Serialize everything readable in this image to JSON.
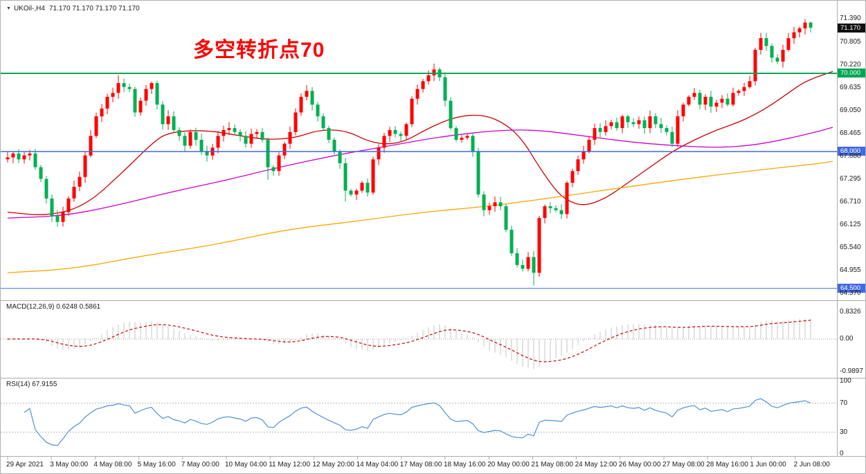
{
  "colors": {
    "bull": "#FF0000",
    "bear": "#00B050",
    "ma_fast": "#CC0000",
    "ma_mid": "#CC00CC",
    "ma_slow": "#FFA500",
    "hline_green": "#00A651",
    "hline_blue": "#4169E1",
    "annotation": "#FF0000",
    "current_bg": "#111111",
    "macd_hist": "#C6C6C6",
    "macd_signal": "#CC0000",
    "rsi_line": "#4A90D9",
    "level_dash": "#B8B8B8",
    "grid_zero": "#999999",
    "frame": "#ABABAB",
    "text": "#1A1A1A"
  },
  "header": {
    "marker": "▼",
    "symbol_period": "UKOil-,H4",
    "ohlc": "71.170 71.170 71.170 71.170"
  },
  "annotation": {
    "text": "多空转折点70"
  },
  "indicators": {
    "macd_label": "MACD(12,26,9) 0.6248 0.5861",
    "rsi_label": "RSI(14) 67.9155"
  },
  "price_labels": {
    "current": "71.170",
    "h70": "70.000",
    "h68": "68.000",
    "h645": "64.500"
  },
  "chart_data": {
    "type": "candlestick",
    "title": "UKOil- H4 candlestick chart with 3 moving averages, MACD(12,26,9) and RSI(14)",
    "symbol": "UKOil-",
    "timeframe": "H4",
    "x_axis_labels": [
      "29 Apr 2021",
      "3 May 00:00",
      "4 May 08:00",
      "5 May 16:00",
      "7 May 00:00",
      "10 May 04:00",
      "11 May 12:00",
      "12 May 20:00",
      "14 May 04:00",
      "17 May 08:00",
      "18 May 16:00",
      "20 May 00:00",
      "21 May 08:00",
      "24 May 12:00",
      "26 May 00:00",
      "27 May 08:00",
      "28 May 16:00",
      "1 Jun 00:00",
      "2 Jun 08:00"
    ],
    "y_axis_ticks": [
      71.39,
      70.805,
      70.22,
      69.635,
      69.05,
      68.465,
      67.88,
      67.295,
      66.71,
      66.125,
      65.54,
      64.955,
      64.37
    ],
    "hlines": [
      {
        "price": 70.0,
        "label": "70.000",
        "color_key": "hline_green",
        "width": 2
      },
      {
        "price": 68.0,
        "label": "68.000",
        "color_key": "hline_blue",
        "width": 1.5
      },
      {
        "price": 64.5,
        "label": "64.500",
        "color_key": "hline_blue",
        "width": 1
      }
    ],
    "current_price": 71.17,
    "candles": {
      "first_open": 67.8,
      "close": [
        67.85,
        67.95,
        67.8,
        67.9,
        67.95,
        67.6,
        67.3,
        66.8,
        66.35,
        66.2,
        66.45,
        66.8,
        67.1,
        67.35,
        67.9,
        68.4,
        68.9,
        69.1,
        69.4,
        69.5,
        69.75,
        69.65,
        69.6,
        69.0,
        69.3,
        69.6,
        69.75,
        69.2,
        68.7,
        68.9,
        68.55,
        68.4,
        68.15,
        68.5,
        68.3,
        68.0,
        67.9,
        68.1,
        68.4,
        68.55,
        68.6,
        68.5,
        68.4,
        68.2,
        68.45,
        68.5,
        68.3,
        67.6,
        67.5,
        67.9,
        68.2,
        68.5,
        69.0,
        69.4,
        69.55,
        69.2,
        68.9,
        68.6,
        68.3,
        68.0,
        67.7,
        67.0,
        66.9,
        67.0,
        67.2,
        66.95,
        67.8,
        68.1,
        68.4,
        68.55,
        68.45,
        68.4,
        68.7,
        69.35,
        69.6,
        69.8,
        69.95,
        70.1,
        69.9,
        69.3,
        68.6,
        68.3,
        68.35,
        68.4,
        68.0,
        66.9,
        66.5,
        66.6,
        66.7,
        66.6,
        66.0,
        65.4,
        65.1,
        65.0,
        65.3,
        64.9,
        66.3,
        66.6,
        66.55,
        66.5,
        66.4,
        67.2,
        67.5,
        67.8,
        68.0,
        68.3,
        68.6,
        68.5,
        68.65,
        68.75,
        68.6,
        68.9,
        68.75,
        68.7,
        68.8,
        68.6,
        68.9,
        68.7,
        68.6,
        68.5,
        68.2,
        68.9,
        69.2,
        69.4,
        69.5,
        69.2,
        69.4,
        69.15,
        69.25,
        69.35,
        69.2,
        69.5,
        69.55,
        69.65,
        69.8,
        70.6,
        70.9,
        70.7,
        70.4,
        70.3,
        70.6,
        70.9,
        71.05,
        71.15,
        71.3,
        71.17
      ],
      "wick_overrides": {
        "9": {
          "low": 66.08
        },
        "20": {
          "high": 69.95
        },
        "47": {
          "low": 67.28
        },
        "61": {
          "low": 66.72
        },
        "77": {
          "high": 70.25
        },
        "95": {
          "low": 64.57
        },
        "144": {
          "high": 71.39
        },
        "145": {
          "high": 71.32,
          "low": 71.05
        }
      }
    },
    "moving_averages": [
      {
        "name": "ma-fast-red",
        "color_key": "ma_fast",
        "points": [
          [
            0,
            66.45
          ],
          [
            7,
            66.35
          ],
          [
            14,
            66.6
          ],
          [
            21,
            67.5
          ],
          [
            26,
            68.2
          ],
          [
            29,
            68.5
          ],
          [
            36,
            68.55
          ],
          [
            42,
            68.4
          ],
          [
            47,
            68.3
          ],
          [
            52,
            68.35
          ],
          [
            56,
            68.55
          ],
          [
            61,
            68.55
          ],
          [
            66,
            68.2
          ],
          [
            71,
            68.2
          ],
          [
            76,
            68.6
          ],
          [
            81,
            68.9
          ],
          [
            86,
            68.95
          ],
          [
            90,
            68.7
          ],
          [
            93,
            68.3
          ],
          [
            96,
            67.6
          ],
          [
            99,
            67.0
          ],
          [
            101,
            66.75
          ],
          [
            104,
            66.6
          ],
          [
            108,
            66.8
          ],
          [
            112,
            67.2
          ],
          [
            116,
            67.6
          ],
          [
            120,
            68.0
          ],
          [
            124,
            68.3
          ],
          [
            128,
            68.55
          ],
          [
            132,
            68.75
          ],
          [
            135,
            68.95
          ],
          [
            138,
            69.2
          ],
          [
            141,
            69.5
          ],
          [
            144,
            69.8
          ],
          [
            149,
            70.05
          ]
        ]
      },
      {
        "name": "ma-mid-magenta",
        "color_key": "ma_mid",
        "points": [
          [
            0,
            66.3
          ],
          [
            10,
            66.35
          ],
          [
            19,
            66.6
          ],
          [
            29,
            66.95
          ],
          [
            39,
            67.25
          ],
          [
            49,
            67.6
          ],
          [
            59,
            67.9
          ],
          [
            69,
            68.15
          ],
          [
            79,
            68.4
          ],
          [
            89,
            68.55
          ],
          [
            96,
            68.55
          ],
          [
            104,
            68.4
          ],
          [
            112,
            68.25
          ],
          [
            120,
            68.15
          ],
          [
            128,
            68.1
          ],
          [
            134,
            68.15
          ],
          [
            140,
            68.3
          ],
          [
            146,
            68.5
          ],
          [
            149,
            68.62
          ]
        ]
      },
      {
        "name": "ma-slow-orange",
        "color_key": "ma_slow",
        "points": [
          [
            0,
            64.9
          ],
          [
            12,
            65.0
          ],
          [
            25,
            65.35
          ],
          [
            37,
            65.6
          ],
          [
            50,
            66.0
          ],
          [
            62,
            66.2
          ],
          [
            75,
            66.45
          ],
          [
            87,
            66.6
          ],
          [
            100,
            66.85
          ],
          [
            112,
            67.1
          ],
          [
            125,
            67.35
          ],
          [
            137,
            67.55
          ],
          [
            147,
            67.7
          ],
          [
            149,
            67.75
          ]
        ]
      }
    ],
    "macd": {
      "params": [
        12,
        26,
        9
      ],
      "current_main": 0.6248,
      "current_signal": 0.5861,
      "axis_ticks": [
        {
          "v": 0.8326,
          "label": "0.8326"
        },
        {
          "v": 0,
          "label": "0.00"
        },
        {
          "v": -0.9897,
          "label": "-0.9897"
        }
      ]
    },
    "rsi": {
      "period": 14,
      "current": 67.9155,
      "levels": [
        70,
        30
      ],
      "axis_ticks": [
        {
          "v": 100,
          "label": "100"
        },
        {
          "v": 70,
          "label": "70"
        },
        {
          "v": 30,
          "label": "30"
        },
        {
          "v": 0,
          "label": "0"
        }
      ]
    }
  }
}
